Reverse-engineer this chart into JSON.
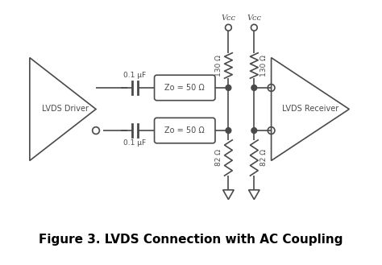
{
  "title": "Figure 3. LVDS Connection with AC Coupling",
  "title_fontsize": 11,
  "bg_color": "#ffffff",
  "line_color": "#4a4a4a",
  "line_width": 1.2,
  "driver_label": "LVDS Driver",
  "receiver_label": "LVDS Receiver",
  "cap_label_top": "0.1 μF",
  "cap_label_bot": "0.1 μF",
  "trans_label_top": "Zo = 50 Ω",
  "trans_label_bot": "Zo = 50 Ω",
  "res_top_left_label": "130 Ω",
  "res_top_right_label": "130 Ω",
  "res_bot_left_label": "82 Ω",
  "res_bot_right_label": "82 Ω",
  "vcc_label": "Vᴄᴄ"
}
